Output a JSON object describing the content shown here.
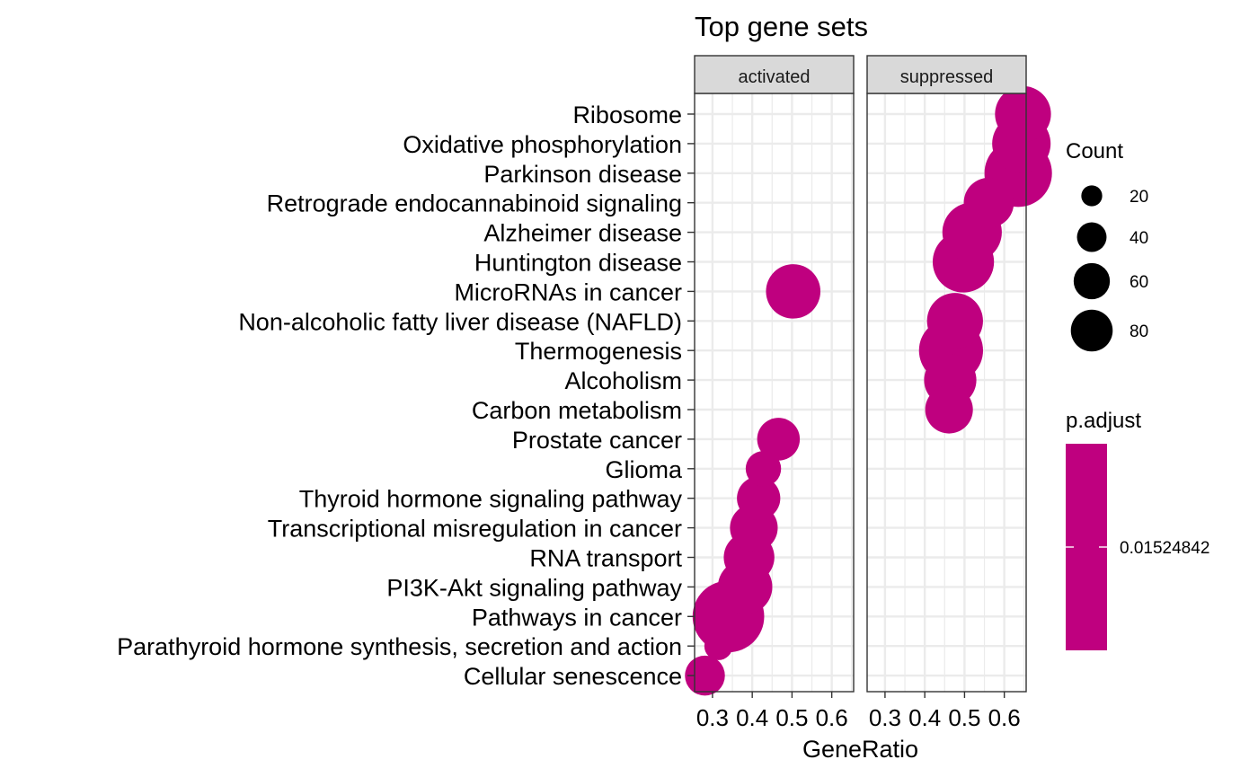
{
  "chart_data": {
    "type": "scatter",
    "title": "Top gene sets",
    "xlabel": "GeneRatio",
    "ylabel": "",
    "xlim": [
      0.255,
      0.655
    ],
    "xticks": [
      0.3,
      0.4,
      0.5,
      0.6
    ],
    "xtick_labels": [
      "0.3",
      "0.4",
      "0.5",
      "0.6"
    ],
    "grid": true,
    "panels": [
      "activated",
      "suppressed"
    ],
    "categories": [
      "Ribosome",
      "Oxidative phosphorylation",
      "Parkinson disease",
      "Retrograde endocannabinoid signaling",
      "Alzheimer disease",
      "Huntington disease",
      "MicroRNAs in cancer",
      "Non-alcoholic fatty liver disease (NAFLD)",
      "Thermogenesis",
      "Alcoholism",
      "Carbon metabolism",
      "Prostate cancer",
      "Glioma",
      "Thyroid hormone signaling pathway",
      "Transcriptional misregulation in cancer",
      "RNA transport",
      "PI3K-Akt signaling pathway",
      "Pathways in cancer",
      "Parathyroid hormone synthesis, secretion and action",
      "Cellular senescence"
    ],
    "points": [
      {
        "category": "MicroRNAs in cancer",
        "panel": "activated",
        "gene_ratio": 0.503,
        "count": 52
      },
      {
        "category": "Prostate cancer",
        "panel": "activated",
        "gene_ratio": 0.466,
        "count": 32
      },
      {
        "category": "Glioma",
        "panel": "activated",
        "gene_ratio": 0.428,
        "count": 22
      },
      {
        "category": "Thyroid hormone signaling pathway",
        "panel": "activated",
        "gene_ratio": 0.416,
        "count": 33
      },
      {
        "category": "Transcriptional misregulation in cancer",
        "panel": "activated",
        "gene_ratio": 0.404,
        "count": 40
      },
      {
        "category": "RNA transport",
        "panel": "activated",
        "gene_ratio": 0.392,
        "count": 45
      },
      {
        "category": "PI3K-Akt signaling pathway",
        "panel": "activated",
        "gene_ratio": 0.382,
        "count": 52
      },
      {
        "category": "Pathways in cancer",
        "panel": "activated",
        "gene_ratio": 0.34,
        "count": 90
      },
      {
        "category": "Parathyroid hormone synthesis, secretion and action",
        "panel": "activated",
        "gene_ratio": 0.315,
        "count": 14
      },
      {
        "category": "Cellular senescence",
        "panel": "activated",
        "gene_ratio": 0.281,
        "count": 28
      },
      {
        "category": "Ribosome",
        "panel": "suppressed",
        "gene_ratio": 0.647,
        "count": 55
      },
      {
        "category": "Oxidative phosphorylation",
        "panel": "suppressed",
        "gene_ratio": 0.643,
        "count": 60
      },
      {
        "category": "Parkinson disease",
        "panel": "suppressed",
        "gene_ratio": 0.635,
        "count": 80
      },
      {
        "category": "Retrograde endocannabinoid signaling",
        "panel": "suppressed",
        "gene_ratio": 0.561,
        "count": 44
      },
      {
        "category": "Alzheimer disease",
        "panel": "suppressed",
        "gene_ratio": 0.519,
        "count": 62
      },
      {
        "category": "Huntington disease",
        "panel": "suppressed",
        "gene_ratio": 0.497,
        "count": 66
      },
      {
        "category": "Non-alcoholic fatty liver disease (NAFLD)",
        "panel": "suppressed",
        "gene_ratio": 0.476,
        "count": 55
      },
      {
        "category": "Thermogenesis",
        "panel": "suppressed",
        "gene_ratio": 0.466,
        "count": 72
      },
      {
        "category": "Alcoholism",
        "panel": "suppressed",
        "gene_ratio": 0.464,
        "count": 48
      },
      {
        "category": "Carbon metabolism",
        "panel": "suppressed",
        "gene_ratio": 0.461,
        "count": 40
      }
    ],
    "size_legend": {
      "title": "Count",
      "values": [
        20,
        40,
        60,
        80
      ],
      "labels": [
        "20",
        "40",
        "60",
        "80"
      ]
    },
    "color_legend": {
      "title": "p.adjust",
      "labels": [
        "0.01524842"
      ],
      "color": "#bf007f"
    },
    "colors": {
      "point": "#bf007f",
      "strip_fill": "#d9d9d9",
      "grid": "#ebebeb"
    }
  }
}
